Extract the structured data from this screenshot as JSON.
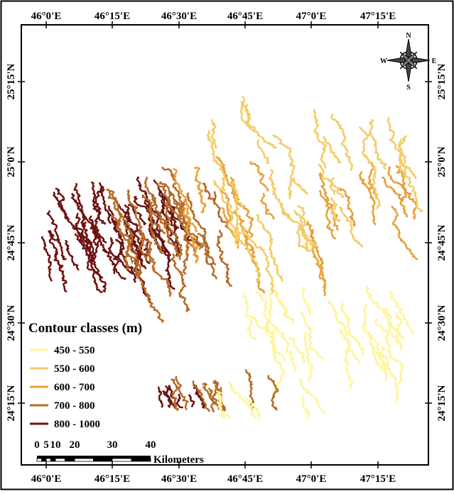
{
  "map": {
    "top_labels": [
      "46°0'E",
      "46°15'E",
      "46°30'E",
      "46°45'E",
      "47°0'E",
      "47°15'E"
    ],
    "bottom_labels": [
      "46°0'E",
      "46°15'E",
      "46°30'E",
      "46°45'E",
      "47°0'E",
      "47°15'E"
    ],
    "left_labels": [
      "25°15'N",
      "25°0'N",
      "24°45'N",
      "24°30'N",
      "24°15'N"
    ],
    "right_labels": [
      "25°15'N",
      "25°0'N",
      "24°45'N",
      "24°30'N",
      "24°15'N"
    ],
    "compass": {
      "n": "N",
      "s": "S",
      "e": "E",
      "w": "W"
    },
    "legend": {
      "title": "Contour classes (m)",
      "items": [
        {
          "label": "450 - 550",
          "color": "#fff59a"
        },
        {
          "label": "550 - 600",
          "color": "#f4cc68"
        },
        {
          "label": "600 - 700",
          "color": "#e6a13c"
        },
        {
          "label": "700 - 800",
          "color": "#b56c28"
        },
        {
          "label": "800 - 1000",
          "color": "#6e1212"
        }
      ]
    },
    "scale_bar": {
      "labels": [
        "0",
        "5",
        "10",
        "20",
        "30",
        "40"
      ],
      "unit": "Kilometers"
    }
  }
}
